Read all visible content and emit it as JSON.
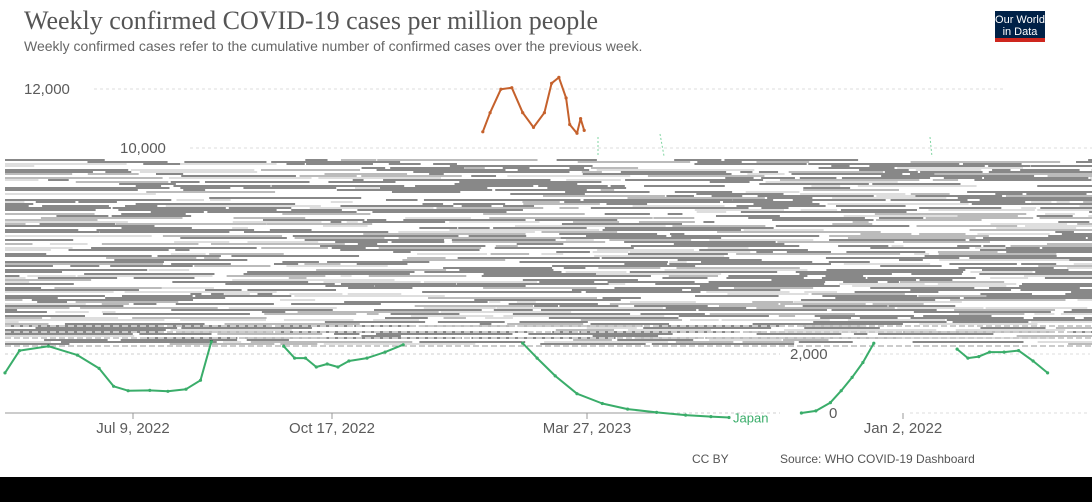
{
  "header": {
    "title": "Weekly confirmed COVID-19 cases per million people",
    "subtitle": "Weekly confirmed cases refer to the cumulative number of confirmed cases over the previous week."
  },
  "logo": {
    "line1": "Our World",
    "line2": "in Data",
    "bg_color": "#002147",
    "accent_color": "#ce261e"
  },
  "footer": {
    "license": "CC BY",
    "source": "Source: WHO COVID-19 Dashboard"
  },
  "colors": {
    "japan": "#3aad6a",
    "other_series": "#c5612c",
    "grid": "#dddddd",
    "glitch_band": "#000000"
  },
  "chart_data": {
    "type": "line",
    "title": "Weekly confirmed COVID-19 cases per million people",
    "subtitle": "Weekly confirmed cases refer to the cumulative number of confirmed cases over the previous week.",
    "y_ticks": [
      {
        "label": "12,000",
        "value": 12000
      },
      {
        "label": "10,000",
        "value": 10000
      },
      {
        "label": "2,000",
        "value": 2000
      },
      {
        "label": "0",
        "value": 0
      }
    ],
    "x_ticks": [
      "Jul 9, 2022",
      "Oct 17, 2022",
      "Mar 27, 2023",
      "Jan 2, 2022"
    ],
    "ylim": [
      0,
      12500
    ],
    "grid": true,
    "series": [
      {
        "name": "Japan",
        "color": "#3aad6a",
        "segments": [
          {
            "x": [
              0,
              0.4,
              1.2,
              2.0,
              2.6,
              3.0,
              3.4,
              4.0,
              4.5,
              5.0,
              5.4,
              5.7
            ],
            "y": [
              1350,
              2100,
              2250,
              1950,
              1500,
              900,
              750,
              760,
              730,
              800,
              1100,
              2400
            ]
          },
          {
            "x": [
              7.7,
              8.0,
              8.3,
              8.6,
              8.9,
              9.2,
              9.5,
              10.0,
              10.5,
              11.0
            ],
            "y": [
              2250,
              1850,
              1850,
              1550,
              1650,
              1550,
              1750,
              1850,
              2050,
              2300
            ]
          },
          {
            "x": [
              14.3,
              14.7,
              15.2,
              15.8,
              16.5,
              17.2,
              18.0,
              18.8,
              19.5,
              20.0
            ],
            "y": [
              2350,
              1850,
              1250,
              650,
              320,
              130,
              20,
              -70,
              -120,
              -150
            ]
          },
          {
            "x": [
              22.0,
              22.4,
              22.8,
              23.1,
              23.4,
              23.7,
              24.0
            ],
            "y": [
              0,
              70,
              350,
              750,
              1200,
              1700,
              2350
            ]
          },
          {
            "x": [
              26.3,
              26.6,
              26.9,
              27.2,
              27.6,
              28.0,
              28.4,
              28.8
            ],
            "y": [
              2150,
              1850,
              1900,
              2050,
              2050,
              2100,
              1750,
              1350
            ]
          }
        ]
      },
      {
        "name": "",
        "color": "#c5612c",
        "segments": [
          {
            "x": [
              13.2,
              13.4,
              13.7,
              14.0,
              14.3,
              14.6,
              14.9,
              15.1,
              15.3,
              15.5,
              15.6,
              15.8,
              15.9,
              16.0
            ],
            "y": [
              10550,
              11200,
              12000,
              12050,
              11200,
              10700,
              11200,
              12200,
              12400,
              11700,
              10800,
              10500,
              11000,
              10600
            ]
          }
        ]
      }
    ]
  }
}
